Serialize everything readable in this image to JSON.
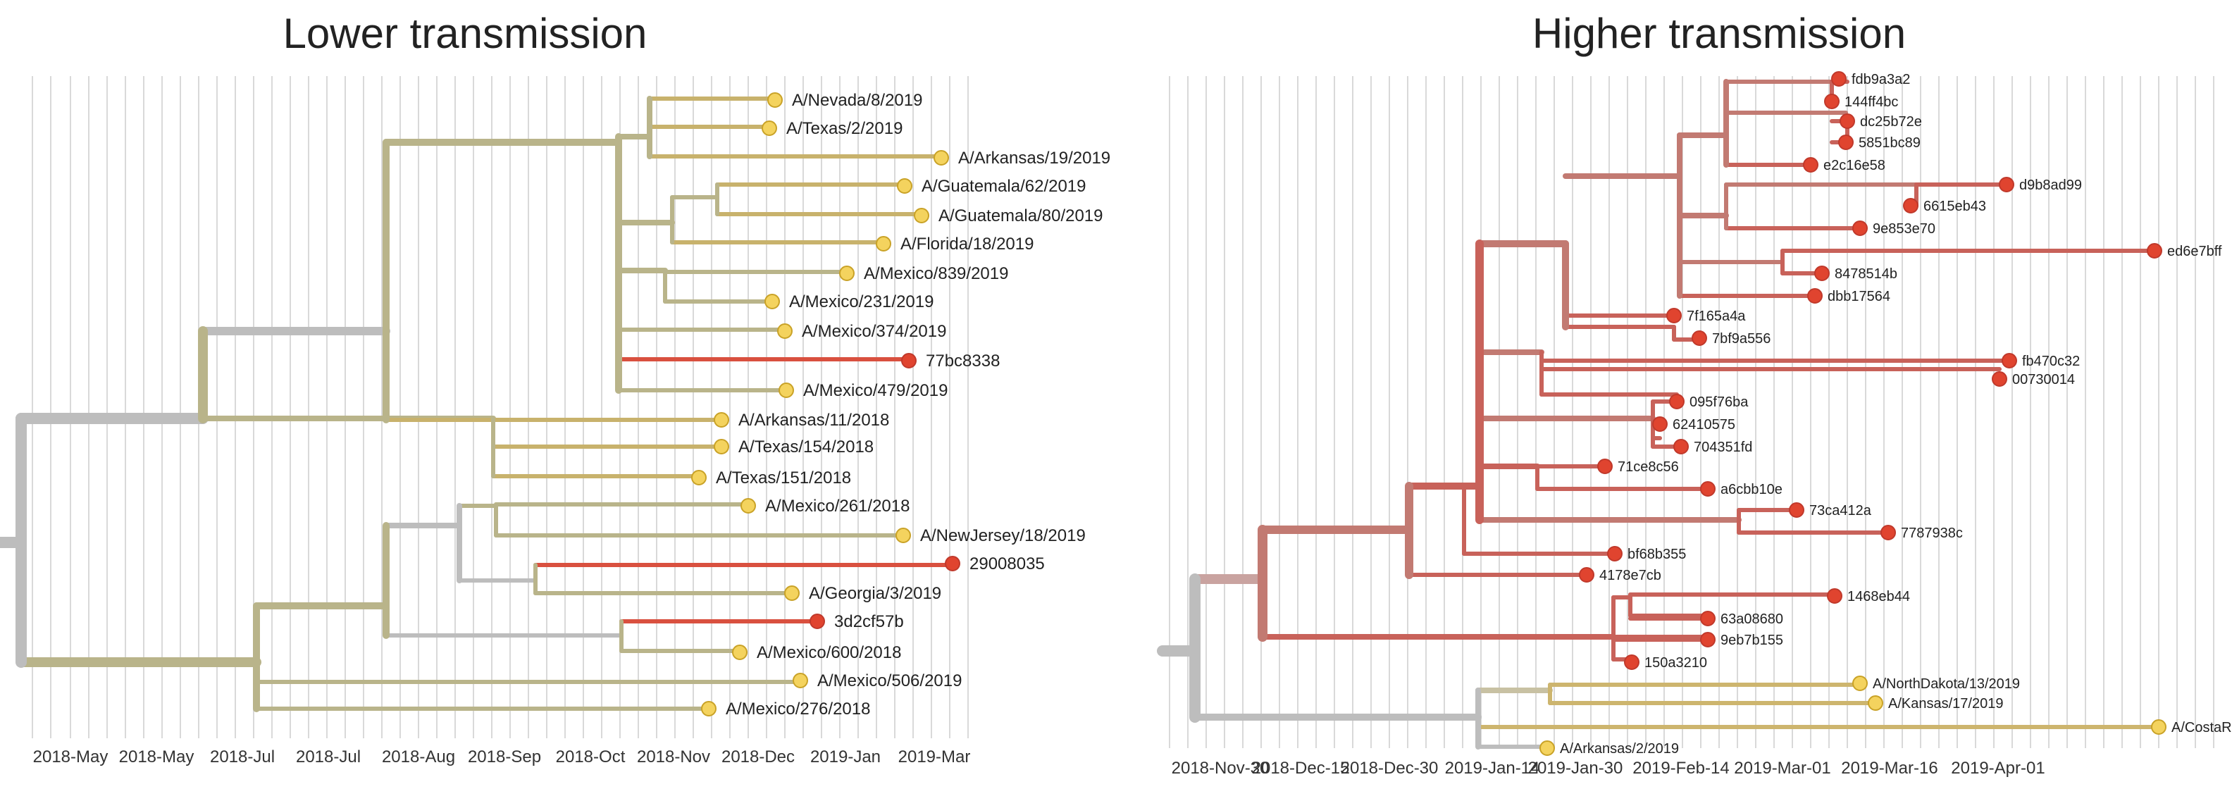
{
  "chart_data": [
    {
      "type": "tree",
      "title": "Lower transmission",
      "x_axis_ticks": [
        "2018-May",
        "2018-May",
        "2018-Jul",
        "2018-Jul",
        "2018-Aug",
        "2018-Sep",
        "2018-Oct",
        "2018-Nov",
        "2018-Dec",
        "2019-Jan",
        "2019-Mar"
      ],
      "tips": [
        "A/Nevada/8/2019",
        "A/Texas/2/2019",
        "A/Arkansas/19/2019",
        "A/Guatemala/62/2019",
        "A/Guatemala/80/2019",
        "A/Florida/18/2019",
        "A/Mexico/839/2019",
        "A/Mexico/231/2019",
        "A/Mexico/374/2019",
        "77bc8338",
        "A/Mexico/479/2019",
        "A/Arkansas/11/2018",
        "A/Texas/154/2018",
        "A/Texas/151/2018",
        "A/Mexico/261/2018",
        "A/NewJersey/18/2019",
        "29008035",
        "A/Georgia/3/2019",
        "3d2cf57b",
        "A/Mexico/600/2018",
        "A/Mexico/506/2019",
        "A/Mexico/276/2018"
      ],
      "colors": {
        "reference_tip": "#f4d35e",
        "sampled_tip": "#e0442f",
        "root_branch": "#bdbdbd",
        "tip_branch": "#c9b36a"
      }
    },
    {
      "type": "tree",
      "title": "Higher transmission",
      "x_axis_ticks": [
        "2018-Nov-30",
        "2018-Dec-15",
        "2018-Dec-30",
        "2019-Jan-14",
        "2019-Jan-30",
        "2019-Feb-14",
        "2019-Mar-01",
        "2019-Mar-16",
        "2019-Apr-01"
      ],
      "tips": [
        "fdb9a3a2",
        "144ff4bc",
        "dc25b72e",
        "5851bc89",
        "e2c16e58",
        "d9b8ad99",
        "6615eb43",
        "9e853e70",
        "ed6e7bff",
        "8478514b",
        "dbb17564",
        "7f165a4a",
        "7bf9a556",
        "fb470c32",
        "00730014",
        "095f76ba",
        "62410575",
        "704351fd",
        "71ce8c56",
        "a6cbb10e",
        "73ca412a",
        "7787938c",
        "bf68b355",
        "4178e7cb",
        "1468eb44",
        "63a08680",
        "9eb7b155",
        "150a3210",
        "A/NorthDakota/13/2019",
        "A/Kansas/17/2019",
        "A/CostaRi",
        "A/Arkansas/2/2019"
      ],
      "colors": {
        "reference_tip": "#f4d35e",
        "sampled_tip": "#e0442f",
        "root_branch": "#bdbdbd",
        "sampled_branch": "#c0605a"
      }
    }
  ]
}
